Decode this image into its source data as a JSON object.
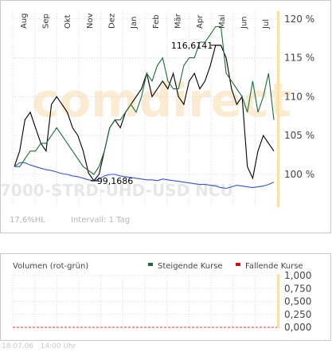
{
  "chart_data": [
    {
      "type": "line",
      "months": [
        "Aug",
        "Sep",
        "Okt",
        "Nov",
        "Dez",
        "Jan",
        "Feb",
        "Mär",
        "Apr",
        "Mai",
        "Jun",
        "Jul"
      ],
      "y_ticks": [
        "100 %",
        "105 %",
        "110 %",
        "115 %",
        "120 %"
      ],
      "ylim": [
        96,
        121
      ],
      "grid": true,
      "watermark": "comdirect",
      "instrument_text": "7000-STRD-UHD-USD NCU",
      "annotations": [
        {
          "label": "116,6141",
          "value": 116.6141
        },
        {
          "label": "99,1686",
          "value": 99.1686
        }
      ],
      "footer_left": "17,6%HL",
      "footer_right": "Intervall: 1 Tag",
      "series": [
        {
          "color": "#000000",
          "values": [
            101,
            103,
            107,
            108,
            106,
            104,
            103,
            109,
            110,
            109,
            108,
            106,
            105,
            103,
            100.2,
            99.2,
            100,
            103,
            106,
            107,
            106,
            108,
            109,
            110,
            111,
            113,
            110,
            111,
            112,
            111,
            113,
            110,
            109,
            112,
            113,
            111,
            112,
            114,
            116.6,
            116.6,
            115,
            111,
            109,
            110,
            101,
            99.5,
            103,
            105,
            104,
            103
          ]
        },
        {
          "color": "#1b6b3a",
          "values": [
            101,
            101,
            102,
            103,
            103,
            104,
            104,
            105,
            106,
            105,
            104,
            103,
            102,
            101,
            100.5,
            100,
            101,
            103,
            106,
            107,
            107,
            108,
            109,
            108,
            110,
            113,
            112,
            114,
            115,
            112,
            111,
            111,
            114,
            115,
            115,
            117,
            117,
            118,
            119,
            119,
            113,
            112,
            111,
            110,
            108,
            112,
            108,
            110,
            113,
            107
          ]
        },
        {
          "color": "#3355cc",
          "values": [
            101,
            101.5,
            101.5,
            101.2,
            101,
            100.8,
            100.6,
            100.5,
            100.3,
            100.1,
            100,
            99.8,
            99.7,
            99.5,
            99.3,
            99.2,
            99.4,
            99.8,
            100,
            100,
            99.8,
            99.7,
            99.6,
            99.5,
            99.4,
            99.3,
            99.3,
            99.2,
            99.4,
            99.3,
            99.2,
            99.1,
            99,
            98.9,
            98.8,
            98.7,
            98.7,
            98.6,
            98.5,
            98.3,
            98.2,
            98.4,
            98.6,
            98.5,
            98.4,
            98.3,
            98.4,
            98.5,
            98.7,
            99
          ]
        }
      ]
    },
    {
      "type": "bar",
      "title": "Volumen (rot-grün)",
      "legend": [
        {
          "label": "Steigende Kurse",
          "color": "#1b6b3a"
        },
        {
          "label": "Fallende Kurse",
          "color": "#cc1111"
        }
      ],
      "y_ticks": [
        "0,000",
        "0,250",
        "0,500",
        "0,750",
        "1,000"
      ],
      "ylim": [
        0,
        1
      ],
      "values": []
    }
  ],
  "footer": {
    "date": "18.07.06",
    "time": "14:00 Uhr"
  }
}
